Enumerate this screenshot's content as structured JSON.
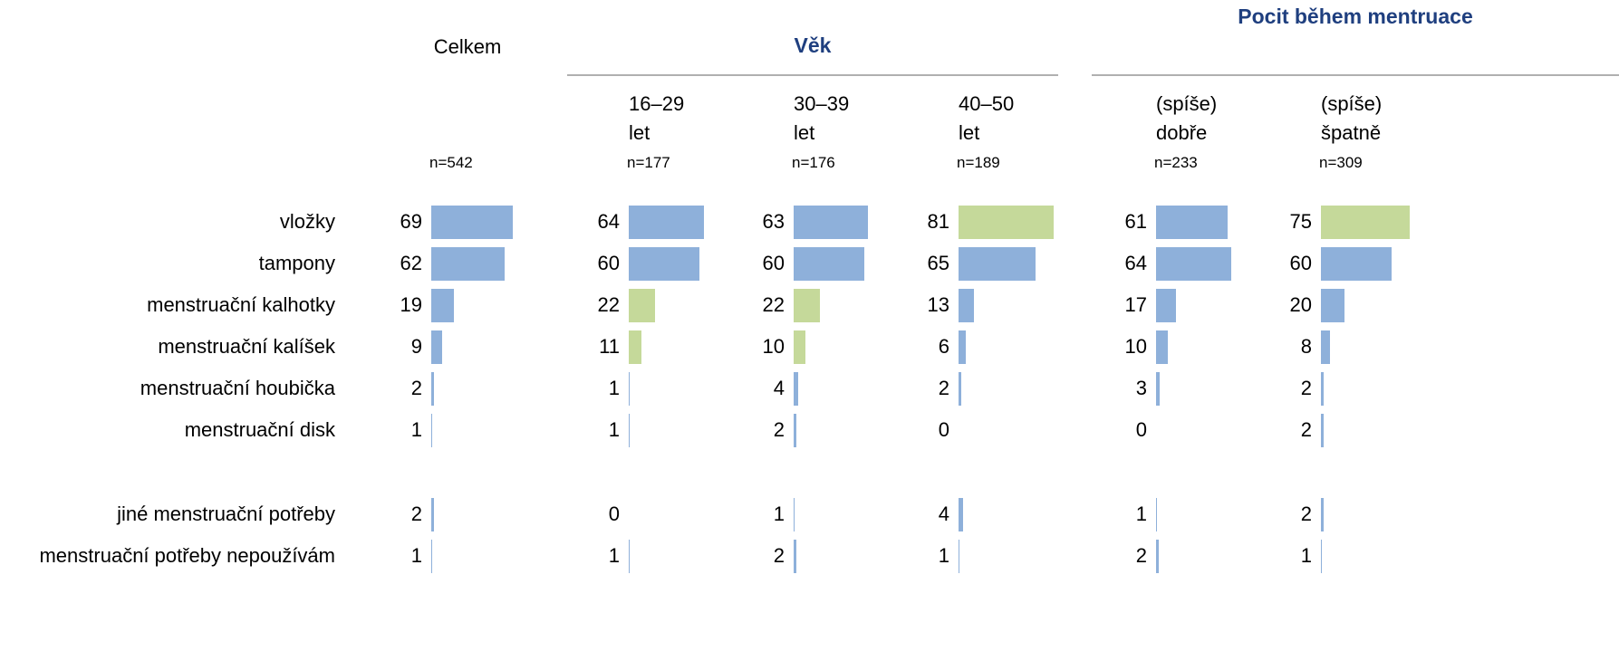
{
  "chart_data": {
    "type": "bar",
    "xlim": [
      0,
      100
    ],
    "categories": [
      "vložky",
      "tampony",
      "menstruační kalhotky",
      "menstruační kalíšek",
      "menstruační houbička",
      "menstruační disk",
      "jiné menstruační potřeby",
      "menstruační potřeby nepoužívám"
    ],
    "groups": [
      {
        "series": [
          {
            "name": "Celkem",
            "n": "n=542",
            "values": [
              69,
              62,
              19,
              9,
              2,
              1,
              2,
              1
            ],
            "colors": [
              "#8eb0da",
              "#8eb0da",
              "#8eb0da",
              "#8eb0da",
              "#8eb0da",
              "#8eb0da",
              "#8eb0da",
              "#8eb0da"
            ]
          }
        ]
      },
      {
        "name": "Věk",
        "series": [
          {
            "name": "16–29 let",
            "n": "n=177",
            "values": [
              64,
              60,
              22,
              11,
              1,
              1,
              0,
              1
            ],
            "colors": [
              "#8eb0da",
              "#8eb0da",
              "#c5d99a",
              "#c5d99a",
              "#8eb0da",
              "#8eb0da",
              "#8eb0da",
              "#8eb0da"
            ]
          },
          {
            "name": "30–39 let",
            "n": "n=176",
            "values": [
              63,
              60,
              22,
              10,
              4,
              2,
              1,
              2
            ],
            "colors": [
              "#8eb0da",
              "#8eb0da",
              "#c5d99a",
              "#c5d99a",
              "#8eb0da",
              "#8eb0da",
              "#8eb0da",
              "#8eb0da"
            ]
          },
          {
            "name": "40–50 let",
            "n": "n=189",
            "values": [
              81,
              65,
              13,
              6,
              2,
              0,
              4,
              1
            ],
            "colors": [
              "#c5d99a",
              "#8eb0da",
              "#8eb0da",
              "#8eb0da",
              "#8eb0da",
              "#8eb0da",
              "#8eb0da",
              "#8eb0da"
            ]
          }
        ]
      },
      {
        "name": "Pocit během mentruace",
        "series": [
          {
            "name": "(spíše) dobře",
            "n": "n=233",
            "values": [
              61,
              64,
              17,
              10,
              3,
              0,
              1,
              2
            ],
            "colors": [
              "#8eb0da",
              "#8eb0da",
              "#8eb0da",
              "#8eb0da",
              "#8eb0da",
              "#8eb0da",
              "#8eb0da",
              "#8eb0da"
            ]
          },
          {
            "name": "(spíše) špatně",
            "n": "n=309",
            "values": [
              75,
              60,
              20,
              8,
              2,
              2,
              2,
              1
            ],
            "colors": [
              "#c5d99a",
              "#8eb0da",
              "#8eb0da",
              "#8eb0da",
              "#8eb0da",
              "#8eb0da",
              "#8eb0da",
              "#8eb0da"
            ]
          }
        ]
      }
    ]
  }
}
